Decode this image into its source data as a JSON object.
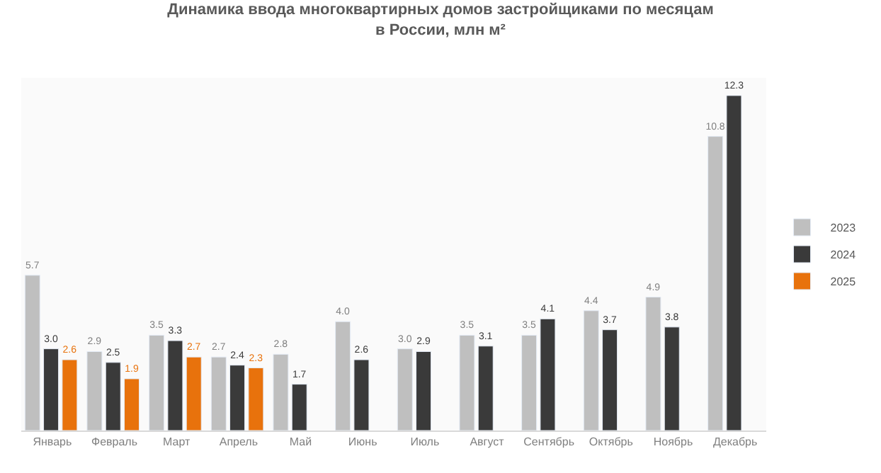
{
  "chart_data": {
    "type": "bar",
    "title": "Динамика ввода многоквартирных домов застройщиками по месяцам\nв России, млн м²",
    "categories": [
      "Январь",
      "Февраль",
      "Март",
      "Апрель",
      "Май",
      "Июнь",
      "Июль",
      "Август",
      "Сентябрь",
      "Октябрь",
      "Ноябрь",
      "Декабрь"
    ],
    "series": [
      {
        "name": "2023",
        "color": "#bfbfbf",
        "values": [
          5.7,
          2.9,
          3.5,
          2.7,
          2.8,
          4.0,
          3.0,
          3.5,
          3.5,
          4.4,
          4.9,
          10.8
        ],
        "value_labels": [
          "5.7",
          "2.9",
          "3.5",
          "2.7",
          "2.8",
          "4.0",
          "3.0",
          "3.5",
          "3.5",
          "4.4",
          "4.9",
          "10.8"
        ]
      },
      {
        "name": "2024",
        "color": "#3a3a3a",
        "values": [
          3.0,
          2.5,
          3.3,
          2.4,
          1.7,
          2.6,
          2.9,
          3.1,
          4.1,
          3.7,
          3.8,
          12.3
        ],
        "value_labels": [
          "3.0",
          "2.5",
          "3.3",
          "2.4",
          "1.7",
          "2.6",
          "2.9",
          "3.1",
          "4.1",
          "3.7",
          "3.8",
          "12.3"
        ]
      },
      {
        "name": "2025",
        "color": "#e8720c",
        "values": [
          2.6,
          1.9,
          2.7,
          2.3,
          null,
          null,
          null,
          null,
          null,
          null,
          null,
          null
        ],
        "value_labels": [
          "2.6",
          "1.9",
          "2.7",
          "2.3",
          null,
          null,
          null,
          null,
          null,
          null,
          null,
          null
        ]
      }
    ],
    "data_labels": true,
    "legend": "right"
  }
}
